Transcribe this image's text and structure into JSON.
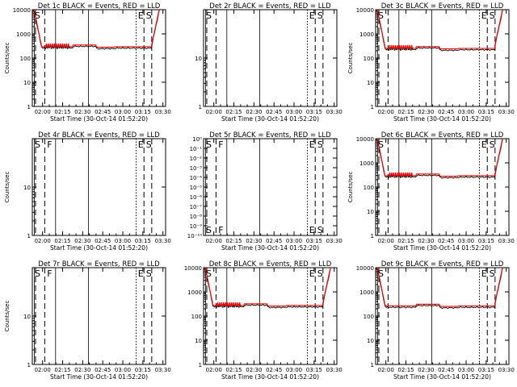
{
  "xlabel": "Start Time (30-Oct-14 01:52:20)",
  "ylabel": "Counts/sec",
  "x_ticks": [
    "02:00",
    "02:15",
    "02:30",
    "02:45",
    "03:00",
    "03:15",
    "03:30"
  ],
  "colors": {
    "events": "#000000",
    "lld": "#ff0000"
  },
  "chart_data": [
    {
      "type": "line",
      "title": "Det 1c BLACK = Events, RED = LLD",
      "ylabel": "Counts/sec",
      "yscale": "log",
      "ylim": [
        1,
        10000
      ],
      "y_ticks": [
        {
          "v": 1,
          "t": "1"
        },
        {
          "v": 10,
          "t": "10"
        },
        {
          "v": 100,
          "t": "100"
        },
        {
          "v": 1000,
          "t": "1000"
        },
        {
          "v": 10000,
          "t": "10000"
        }
      ],
      "markers": [
        "S",
        "E",
        "S"
      ],
      "has_data": true,
      "baseline": 280,
      "spikes": true
    },
    {
      "type": "line",
      "title": "Det 2r BLACK = Events, RED = LLD",
      "ylabel": "",
      "yscale": "log",
      "ylim": [
        1,
        100
      ],
      "y_ticks": [
        {
          "v": 1,
          "t": "1"
        },
        {
          "v": 10,
          "t": "10"
        }
      ],
      "markers": [
        "S",
        "E",
        "S"
      ],
      "has_data": false
    },
    {
      "type": "line",
      "title": "Det 3c BLACK = Events, RED = LLD",
      "ylabel": "Counts/sec",
      "yscale": "log",
      "ylim": [
        1,
        10000
      ],
      "y_ticks": [
        {
          "v": 1,
          "t": "1"
        },
        {
          "v": 10,
          "t": "10"
        },
        {
          "v": 100,
          "t": "100"
        },
        {
          "v": 1000,
          "t": "1000"
        },
        {
          "v": 10000,
          "t": "10000"
        }
      ],
      "markers": [
        "S",
        "E",
        "S"
      ],
      "has_data": true,
      "baseline": 240,
      "spikes": true
    },
    {
      "type": "line",
      "title": "Det 4r BLACK = Events, RED = LLD",
      "ylabel": "Counts/sec",
      "yscale": "log",
      "ylim": [
        1,
        100
      ],
      "y_ticks": [
        {
          "v": 1,
          "t": "1"
        },
        {
          "v": 10,
          "t": "10"
        }
      ],
      "markers": [
        "S",
        "F",
        "E",
        "S"
      ],
      "has_data": false
    },
    {
      "type": "line",
      "title": "Det 5r BLACK = Events, RED = LLD",
      "ylabel": "",
      "yscale": "log",
      "ylim": [
        1e-10,
        1
      ],
      "y_ticks": [
        {
          "v": 1,
          "t": "10⁰"
        },
        {
          "v": 0.1,
          "t": "10⁻¹"
        },
        {
          "v": 0.01,
          "t": "10⁻²"
        },
        {
          "v": 0.001,
          "t": "10⁻³"
        },
        {
          "v": 0.0001,
          "t": "10⁻⁴"
        },
        {
          "v": 1e-05,
          "t": "10⁻⁵"
        },
        {
          "v": 1e-06,
          "t": "10⁻⁶"
        },
        {
          "v": 1e-07,
          "t": "10⁻⁷"
        },
        {
          "v": 1e-08,
          "t": "10⁻⁸"
        },
        {
          "v": 1e-09,
          "t": "10⁻⁹"
        },
        {
          "v": 1e-10,
          "t": "10⁻¹⁰"
        }
      ],
      "markers": [
        "S",
        "F",
        "E",
        "S"
      ],
      "has_data": false
    },
    {
      "type": "line",
      "title": "Det 6c BLACK = Events, RED = LLD",
      "ylabel": "Counts/sec",
      "yscale": "log",
      "ylim": [
        1,
        10000
      ],
      "y_ticks": [
        {
          "v": 1,
          "t": "1"
        },
        {
          "v": 10,
          "t": "10"
        },
        {
          "v": 100,
          "t": "100"
        },
        {
          "v": 1000,
          "t": "1000"
        },
        {
          "v": 10000,
          "t": "10000"
        }
      ],
      "markers": [
        "S",
        "E",
        "S"
      ],
      "has_data": true,
      "baseline": 280,
      "spikes": true
    },
    {
      "type": "line",
      "title": "Det 7r BLACK = Events, RED = LLD",
      "ylabel": "Counts/sec",
      "yscale": "log",
      "ylim": [
        1,
        100
      ],
      "y_ticks": [
        {
          "v": 1,
          "t": "1"
        },
        {
          "v": 10,
          "t": "10"
        }
      ],
      "markers": [
        "S",
        "F",
        "E",
        "S"
      ],
      "has_data": false
    },
    {
      "type": "line",
      "title": "Det 8c BLACK = Events, RED = LLD",
      "ylabel": "",
      "yscale": "log",
      "ylim": [
        1,
        10000
      ],
      "y_ticks": [
        {
          "v": 1,
          "t": "1"
        },
        {
          "v": 10,
          "t": "10"
        },
        {
          "v": 100,
          "t": "100"
        },
        {
          "v": 1000,
          "t": "1000"
        },
        {
          "v": 10000,
          "t": "10000"
        }
      ],
      "markers": [
        "S",
        "E",
        "S"
      ],
      "has_data": true,
      "baseline": 260,
      "spikes": true
    },
    {
      "type": "line",
      "title": "Det 9c BLACK = Events, RED = LLD",
      "ylabel": "",
      "yscale": "log",
      "ylim": [
        1,
        10000
      ],
      "y_ticks": [
        {
          "v": 1,
          "t": "1"
        },
        {
          "v": 10,
          "t": "10"
        },
        {
          "v": 100,
          "t": "100"
        },
        {
          "v": 1000,
          "t": "1000"
        },
        {
          "v": 10000,
          "t": "10000"
        }
      ],
      "markers": [
        "S",
        "E",
        "S"
      ],
      "has_data": true,
      "baseline": 250,
      "spikes": false
    }
  ]
}
